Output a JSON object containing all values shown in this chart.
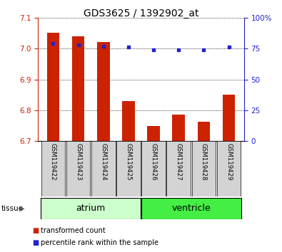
{
  "title": "GDS3625 / 1392902_at",
  "samples": [
    "GSM119422",
    "GSM119423",
    "GSM119424",
    "GSM119425",
    "GSM119426",
    "GSM119427",
    "GSM119428",
    "GSM119429"
  ],
  "transformed_count": [
    7.05,
    7.04,
    7.02,
    6.83,
    6.75,
    6.785,
    6.762,
    6.85
  ],
  "percentile_rank": [
    79,
    78,
    77,
    76,
    74,
    74,
    74,
    76
  ],
  "ylim_left": [
    6.7,
    7.1
  ],
  "ylim_right": [
    0,
    100
  ],
  "yticks_left": [
    6.7,
    6.8,
    6.9,
    7.0,
    7.1
  ],
  "yticks_right": [
    0,
    25,
    50,
    75,
    100
  ],
  "yticklabels_right": [
    "0",
    "25",
    "50",
    "75",
    "100%"
  ],
  "bar_color": "#cc2200",
  "dot_color": "#2222cc",
  "tissue_groups": [
    {
      "label": "atrium",
      "start": 0,
      "end": 3,
      "color": "#ccffcc"
    },
    {
      "label": "ventricle",
      "start": 4,
      "end": 7,
      "color": "#44ee44"
    }
  ],
  "tissue_label": "tissue",
  "legend_items": [
    {
      "label": "transformed count",
      "color": "#cc2200"
    },
    {
      "label": "percentile rank within the sample",
      "color": "#2222cc"
    }
  ],
  "axis_color_left": "#cc2200",
  "axis_color_right": "#2222cc",
  "bar_bottom": 6.7,
  "sample_box_color": "#d3d3d3",
  "bar_width": 0.5
}
